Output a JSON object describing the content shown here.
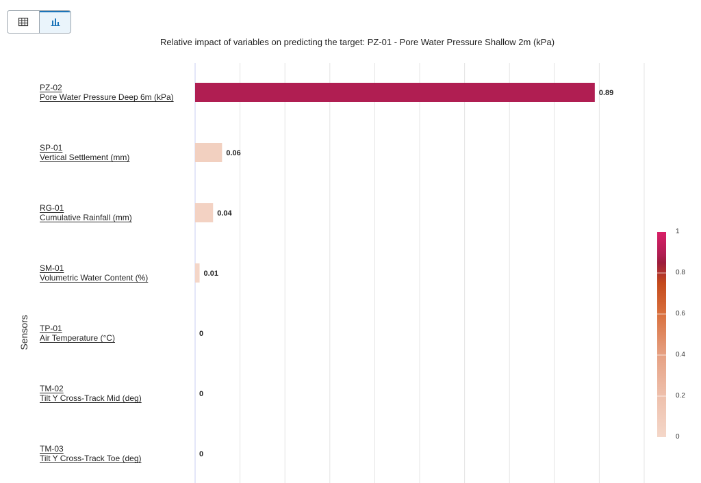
{
  "toolbar": {
    "table_view_icon": "grid-table-icon",
    "chart_view_icon": "bar-chart-icon",
    "active": "chart"
  },
  "chart_data": {
    "type": "bar",
    "orientation": "horizontal",
    "title": "Relative impact of variables on predicting the target: PZ-01 - Pore Water Pressure Shallow 2m (kPa)",
    "ylabel": "Sensors",
    "xlabel": "",
    "xlim": [
      0,
      1
    ],
    "grid": true,
    "categories": [
      {
        "code": "PZ-02",
        "name": "Pore Water Pressure Deep 6m (kPa)"
      },
      {
        "code": "SP-01",
        "name": "Vertical Settlement (mm)"
      },
      {
        "code": "RG-01",
        "name": "Cumulative Rainfall (mm)"
      },
      {
        "code": "SM-01",
        "name": "Volumetric Water Content (%)"
      },
      {
        "code": "TP-01",
        "name": "Air Temperature (°C)"
      },
      {
        "code": "TM-02",
        "name": "Tilt Y Cross-Track Mid (deg)"
      },
      {
        "code": "TM-03",
        "name": "Tilt Y Cross-Track Toe (deg)"
      }
    ],
    "values": [
      0.89,
      0.06,
      0.04,
      0.01,
      0,
      0,
      0
    ],
    "value_labels": [
      "0.89",
      "0.06",
      "0.04",
      "0.01",
      "0",
      "0",
      "0"
    ],
    "colorscale": {
      "range": [
        0,
        1
      ],
      "tick_labels": [
        "1",
        "0.8",
        "0.6",
        "0.4",
        "0.2",
        "0"
      ],
      "stops": [
        {
          "value": 0,
          "color": "#f4d7c9"
        },
        {
          "value": 0.2,
          "color": "#eec0ac"
        },
        {
          "value": 0.4,
          "color": "#e6a183"
        },
        {
          "value": 0.6,
          "color": "#d9703e"
        },
        {
          "value": 0.75,
          "color": "#c44a1c"
        },
        {
          "value": 0.85,
          "color": "#9c1c3c"
        },
        {
          "value": 0.89,
          "color": "#b01e52"
        },
        {
          "value": 1,
          "color": "#d81f67"
        }
      ],
      "placement": "right"
    }
  }
}
